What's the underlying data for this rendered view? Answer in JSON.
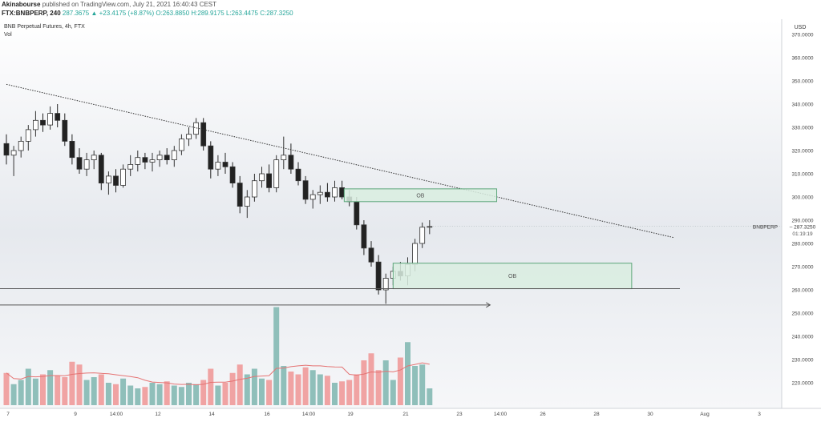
{
  "header": {
    "author": "Akinabourse",
    "published": "published on TradingView.com, July 21, 2021 16:40:43 CEST",
    "symbol_line": "FTX:BNBPERP, 240",
    "ohlc": "287.3675 ▲ +23.4175 (+8.87%) O:263.8850 H:289.9175 L:263.4475 C:287.3250"
  },
  "legend": {
    "title": "BNB Perpetual Futures, 4h, FTX",
    "vol": "Vol"
  },
  "colors": {
    "up": "#26a69a",
    "down": "#222222",
    "vol_up": "#8fbfba",
    "vol_down": "#f0a3a3",
    "ob_fill": "#d9ede0",
    "ob_stroke": "#5da67a",
    "ma": "#e57373"
  },
  "chart_data": {
    "type": "candlestick",
    "currency": "USD",
    "ylim": [
      215,
      375
    ],
    "y_ticks": [
      "370.0000",
      "360.0000",
      "350.0000",
      "340.0000",
      "330.0000",
      "320.0000",
      "310.0000",
      "300.0000",
      "290.0000",
      "280.0000",
      "270.0000",
      "260.0000",
      "250.0000",
      "240.0000",
      "230.0000",
      "220.0000"
    ],
    "x_ticks": [
      "7",
      "9",
      "14:00",
      "12",
      "14",
      "16",
      "14:00",
      "19",
      "21",
      "23",
      "14:00",
      "26",
      "28",
      "30",
      "Aug",
      "3"
    ],
    "last_price": {
      "symbol": "BNBPERP",
      "value": "287.3250",
      "countdown": "01:19:19"
    },
    "candles": [
      [
        323.0,
        327.0,
        314.0,
        318.0
      ],
      [
        318.0,
        322.0,
        309.0,
        320.0
      ],
      [
        320.0,
        326.0,
        317.0,
        324.0
      ],
      [
        324.0,
        331.0,
        320.0,
        329.0
      ],
      [
        329.0,
        337.0,
        326.0,
        333.0
      ],
      [
        333.0,
        336.0,
        328.0,
        331.0
      ],
      [
        331.0,
        339.0,
        329.0,
        336.0
      ],
      [
        336.0,
        340.0,
        330.0,
        333.0
      ],
      [
        333.0,
        336.0,
        322.0,
        324.0
      ],
      [
        324.0,
        327.0,
        314.0,
        317.0
      ],
      [
        317.0,
        321.0,
        310.0,
        312.0
      ],
      [
        312.0,
        319.0,
        309.0,
        316.0
      ],
      [
        316.0,
        320.0,
        312.0,
        318.0
      ],
      [
        318.0,
        319.0,
        303.0,
        306.0
      ],
      [
        306.0,
        311.0,
        301.0,
        309.0
      ],
      [
        309.0,
        312.0,
        302.0,
        305.0
      ],
      [
        305.0,
        314.0,
        304.0,
        312.0
      ],
      [
        312.0,
        318.0,
        309.0,
        314.0
      ],
      [
        314.0,
        320.0,
        311.0,
        317.0
      ],
      [
        317.0,
        319.0,
        312.0,
        315.0
      ],
      [
        315.0,
        319.0,
        311.0,
        316.0
      ],
      [
        316.0,
        320.0,
        313.0,
        318.0
      ],
      [
        318.0,
        321.0,
        314.0,
        316.0
      ],
      [
        316.0,
        322.0,
        313.0,
        320.0
      ],
      [
        320.0,
        327.0,
        318.0,
        325.0
      ],
      [
        325.0,
        330.0,
        322.0,
        327.0
      ],
      [
        327.0,
        334.0,
        325.0,
        332.0
      ],
      [
        332.0,
        334.0,
        320.0,
        322.0
      ],
      [
        322.0,
        324.0,
        308.0,
        312.0
      ],
      [
        312.0,
        318.0,
        309.0,
        315.0
      ],
      [
        315.0,
        319.0,
        310.0,
        313.0
      ],
      [
        313.0,
        315.0,
        304.0,
        306.0
      ],
      [
        306.0,
        309.0,
        293.0,
        296.0
      ],
      [
        296.0,
        303.0,
        291.0,
        300.0
      ],
      [
        300.0,
        310.0,
        298.0,
        307.0
      ],
      [
        307.0,
        313.0,
        304.0,
        310.0
      ],
      [
        310.0,
        314.0,
        302.0,
        304.0
      ],
      [
        304.0,
        318.0,
        302.0,
        316.0
      ],
      [
        316.0,
        326.0,
        312.0,
        318.0
      ],
      [
        318.0,
        323.0,
        310.0,
        312.0
      ],
      [
        312.0,
        315.0,
        305.0,
        307.0
      ],
      [
        307.0,
        309.0,
        297.0,
        299.0
      ],
      [
        299.0,
        303.0,
        295.0,
        301.0
      ],
      [
        301.0,
        305.0,
        297.0,
        302.0
      ],
      [
        302.0,
        306.0,
        298.0,
        300.0
      ],
      [
        300.0,
        307.0,
        298.0,
        304.0
      ],
      [
        304.0,
        307.0,
        299.0,
        300.0
      ],
      [
        300.0,
        303.0,
        296.0,
        298.0
      ],
      [
        298.0,
        300.0,
        286.0,
        288.0
      ],
      [
        288.0,
        290.0,
        275.0,
        278.0
      ],
      [
        278.0,
        281.0,
        270.0,
        272.0
      ],
      [
        272.0,
        275.0,
        258.0,
        260.0
      ],
      [
        260.0,
        267.0,
        254.0,
        265.0
      ],
      [
        265.0,
        270.0,
        262.0,
        268.0
      ],
      [
        268.0,
        272.0,
        264.0,
        266.0
      ],
      [
        266.0,
        274.0,
        262.0,
        271.0
      ],
      [
        271.0,
        282.0,
        268.0,
        280.0
      ],
      [
        280.0,
        289.0,
        278.0,
        287.0
      ],
      [
        287.0,
        290.0,
        284.0,
        287.3
      ]
    ],
    "volumes": [
      23,
      15,
      18,
      26,
      19,
      22,
      25,
      21,
      20,
      31,
      29,
      18,
      20,
      22,
      16,
      15,
      19,
      14,
      12,
      13,
      16,
      15,
      17,
      14,
      13,
      16,
      15,
      18,
      26,
      14,
      16,
      23,
      29,
      22,
      26,
      19,
      18,
      70,
      28,
      24,
      22,
      27,
      25,
      22,
      21,
      16,
      17,
      18,
      22,
      32,
      37,
      25,
      32,
      18,
      34,
      45,
      28,
      29,
      12
    ],
    "annotations": {
      "ob_labels": [
        "OB",
        "OB"
      ],
      "ob_boxes": [
        {
          "label": "OB",
          "x_from": 46.3,
          "x_to": 67.2,
          "y_top": 303.5,
          "y_bottom": 298
        },
        {
          "label": "OB",
          "x_from": 53.0,
          "x_to": 85.7,
          "y_top": 271.5,
          "y_bottom": 260.5
        }
      ],
      "trendline": {
        "x1": 0,
        "y1": 348.5,
        "x2": 91.5,
        "y2": 282.5
      },
      "horizontal_line": {
        "y": 260.5
      },
      "arrow": {
        "y": 253.5,
        "x_to": 63
      }
    }
  }
}
